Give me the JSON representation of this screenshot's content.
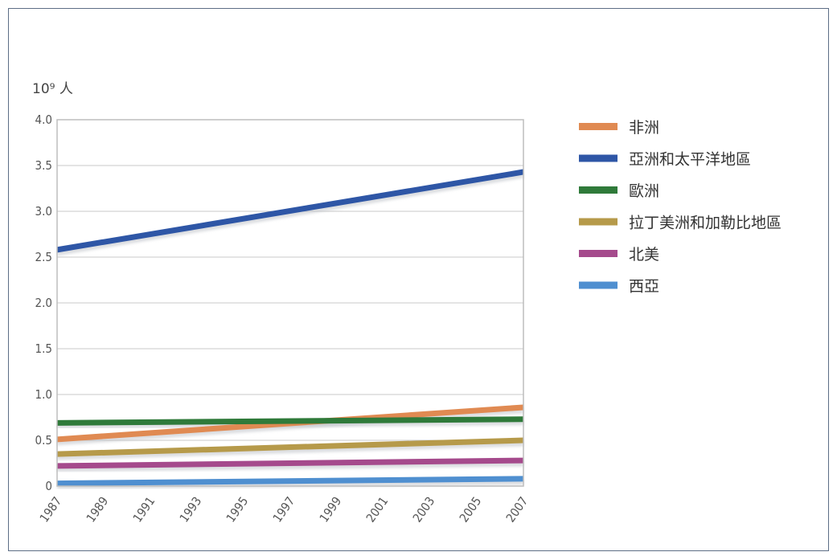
{
  "chart_data": {
    "type": "line",
    "title": "",
    "ylabel": "10⁹ 人",
    "xlabel": "",
    "ylim": [
      0,
      4.0
    ],
    "y_ticks": [
      "0",
      "0.5",
      "1.0",
      "1.5",
      "2.0",
      "2.5",
      "3.0",
      "3.5",
      "4.0"
    ],
    "y_tick_values": [
      0,
      0.5,
      1.0,
      1.5,
      2.0,
      2.5,
      3.0,
      3.5,
      4.0
    ],
    "categories": [
      "1987",
      "1989",
      "1991",
      "1993",
      "1995",
      "1997",
      "1999",
      "2001",
      "2003",
      "2005",
      "2007"
    ],
    "grid": true,
    "legend_position": "right",
    "series": [
      {
        "name": "非洲",
        "color": "#e08a52",
        "start": 0.51,
        "end": 0.86
      },
      {
        "name": "亞洲和太平洋地區",
        "color": "#2e56a6",
        "start": 2.58,
        "end": 3.43
      },
      {
        "name": "歐洲",
        "color": "#2f7a3a",
        "start": 0.69,
        "end": 0.73
      },
      {
        "name": "拉丁美洲和加勒比地區",
        "color": "#b69a4a",
        "start": 0.35,
        "end": 0.5
      },
      {
        "name": "北美",
        "color": "#a54a8c",
        "start": 0.22,
        "end": 0.28
      },
      {
        "name": "西亞",
        "color": "#4f8fd0",
        "start": 0.03,
        "end": 0.08
      }
    ]
  }
}
